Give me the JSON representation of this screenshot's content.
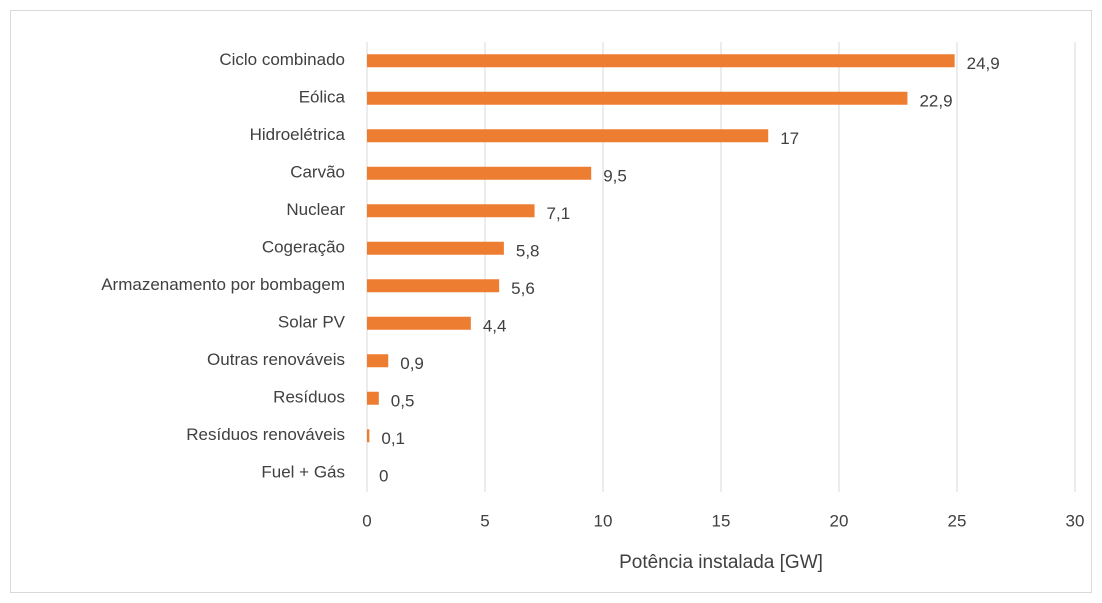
{
  "chart_data": {
    "type": "bar",
    "orientation": "horizontal",
    "x_axis_label": "Potência instalada [GW]",
    "categories": [
      "Ciclo combinado",
      "Eólica",
      "Hidroelétrica",
      "Carvão",
      "Nuclear",
      "Cogeração",
      "Armazenamento por bombagem",
      "Solar PV",
      "Outras renováveis",
      "Resíduos",
      "Resíduos renováveis",
      "Fuel + Gás"
    ],
    "values": [
      24.9,
      22.9,
      17,
      9.5,
      7.1,
      5.8,
      5.6,
      4.4,
      0.9,
      0.5,
      0.1,
      0
    ],
    "value_labels": [
      "24,9",
      "22,9",
      "17",
      "9,5",
      "7,1",
      "5,8",
      "5,6",
      "4,4",
      "0,9",
      "0,5",
      "0,1",
      "0"
    ],
    "color": "#ed7d31",
    "xlim": [
      0,
      30
    ],
    "xticks": [
      0,
      5,
      10,
      15,
      20,
      25,
      30
    ],
    "grid": true
  }
}
